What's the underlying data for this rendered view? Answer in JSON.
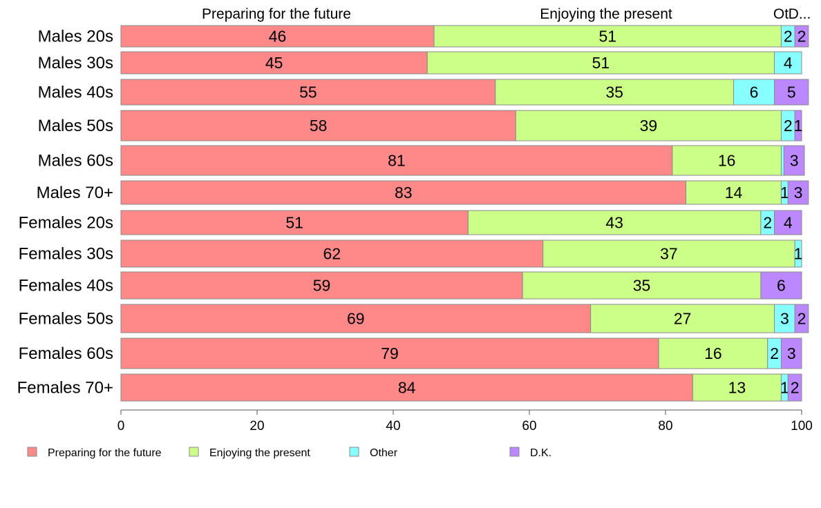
{
  "chart_data": {
    "type": "bar",
    "orientation": "horizontal",
    "stacked": true,
    "categories": [
      "Males 20s",
      "Males 30s",
      "Males 40s",
      "Males 50s",
      "Males 60s",
      "Males 70+",
      "Females 20s",
      "Females 30s",
      "Females 40s",
      "Females 50s",
      "Females 60s",
      "Females 70+"
    ],
    "series": [
      {
        "name": "Preparing for the future",
        "color": "#ff8888",
        "values": [
          46,
          45,
          55,
          58,
          81,
          83,
          51,
          62,
          59,
          69,
          79,
          84
        ]
      },
      {
        "name": "Enjoying the present",
        "color": "#ccff88",
        "values": [
          51,
          51,
          35,
          39,
          16,
          14,
          43,
          37,
          35,
          27,
          16,
          13
        ]
      },
      {
        "name": "Other",
        "color": "#88ffff",
        "values": [
          2,
          4,
          6,
          2,
          0.4,
          1,
          2,
          1,
          0,
          3,
          2,
          1
        ]
      },
      {
        "name": "D.K.",
        "color": "#bb88ff",
        "values": [
          2,
          0,
          5,
          1,
          3,
          3,
          4,
          0,
          6,
          2,
          3,
          2
        ]
      }
    ],
    "top_labels": [
      "Preparing for the future",
      "Enjoying the present",
      "Ot",
      "D..."
    ],
    "xlim": [
      0,
      100
    ],
    "xticks": [
      0,
      20,
      40,
      60,
      80,
      100
    ],
    "grid": false,
    "legend_position": "bottom"
  }
}
